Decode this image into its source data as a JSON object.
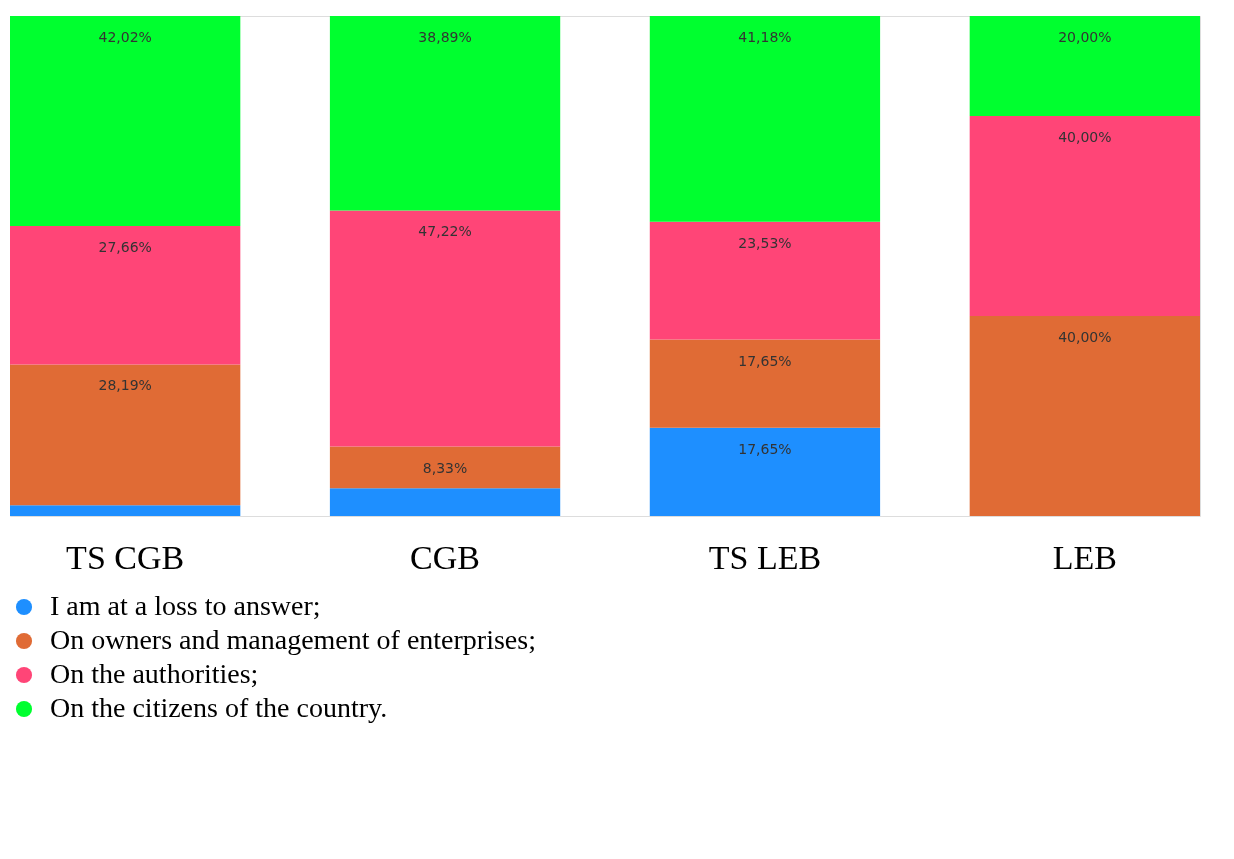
{
  "chart_data": {
    "type": "bar",
    "stacked": true,
    "categories": [
      "TS CGB",
      "CGB",
      "TS LEB",
      "LEB"
    ],
    "ylim": [
      0,
      100
    ],
    "tick_labels": "x",
    "grid": false,
    "legend": "bottom",
    "series": [
      {
        "name": "I am at a loss to answer;",
        "color": "#1e8fff",
        "values": [
          2.13,
          5.56,
          17.65,
          0
        ],
        "value_labels": [
          null,
          null,
          "17,65%",
          null
        ]
      },
      {
        "name": "On owners and management of enterprises;",
        "color": "#e06b35",
        "values": [
          28.19,
          8.33,
          17.65,
          40
        ],
        "value_labels": [
          "28,19%",
          "8,33%",
          "17,65%",
          "40,00%"
        ]
      },
      {
        "name": "On the authorities;",
        "color": "#ff4577",
        "values": [
          27.66,
          47.22,
          23.53,
          40
        ],
        "value_labels": [
          "27,66%",
          "47,22%",
          "23,53%",
          "40,00%"
        ]
      },
      {
        "name": "On the citizens of the country.",
        "color": "#00ff2f",
        "values": [
          42.02,
          38.89,
          41.18,
          20
        ],
        "value_labels": [
          "42,02%",
          "38,89%",
          "41,18%",
          "20,00%"
        ]
      }
    ]
  }
}
